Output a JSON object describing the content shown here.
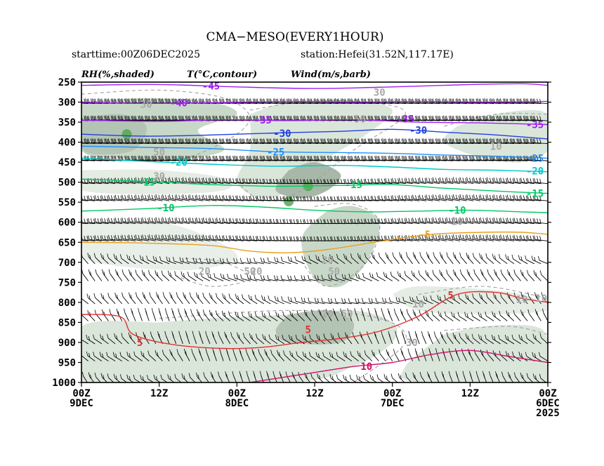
{
  "chart_data": {
    "type": "time-height cross-section",
    "title": "CMA−MESO(EVERY1HOUR)",
    "starttime_label": "starttime:00Z06DEC2025",
    "station_label": "station:Hefei(31.52N,117.17E)",
    "legend": {
      "rh": "RH(%,shaded)",
      "temp": "T(°C,contour)",
      "wind": "Wind(m/s,barb)"
    },
    "y_axis": {
      "unit": "hPa",
      "levels": [
        250,
        300,
        350,
        400,
        450,
        500,
        550,
        600,
        650,
        700,
        750,
        800,
        850,
        900,
        950,
        1000
      ],
      "labels": [
        "250",
        "300",
        "350",
        "400",
        "450",
        "500",
        "550",
        "600",
        "650",
        "700",
        "750",
        "800",
        "850",
        "900",
        "950",
        "1000"
      ]
    },
    "x_axis": {
      "direction": "reversed (time decreases to the right)",
      "hours_range": [
        0,
        72
      ],
      "ticks": [
        {
          "hour": 72,
          "line1": "00Z",
          "line2": "9DEC",
          "line3": ""
        },
        {
          "hour": 60,
          "line1": "12Z",
          "line2": "",
          "line3": ""
        },
        {
          "hour": 48,
          "line1": "00Z",
          "line2": "8DEC",
          "line3": ""
        },
        {
          "hour": 36,
          "line1": "12Z",
          "line2": "",
          "line3": ""
        },
        {
          "hour": 24,
          "line1": "00Z",
          "line2": "7DEC",
          "line3": ""
        },
        {
          "hour": 12,
          "line1": "12Z",
          "line2": "",
          "line3": ""
        },
        {
          "hour": 0,
          "line1": "00Z",
          "line2": "6DEC",
          "line3": "2025"
        }
      ]
    },
    "temperature_contours": [
      {
        "value": -45,
        "label": "-45",
        "color": "#a020f0",
        "points": [
          [
            72,
            258
          ],
          [
            60,
            256
          ],
          [
            48,
            262
          ],
          [
            36,
            266
          ],
          [
            24,
            262
          ],
          [
            12,
            256
          ],
          [
            4,
            254
          ],
          [
            0,
            258
          ]
        ]
      },
      {
        "value": -40,
        "label": "-40",
        "color": "#a020f0",
        "points": [
          [
            72,
            300
          ],
          [
            62,
            303
          ],
          [
            50,
            301
          ],
          [
            40,
            298
          ],
          [
            30,
            300
          ],
          [
            20,
            298
          ],
          [
            10,
            300
          ],
          [
            0,
            298
          ]
        ]
      },
      {
        "value": -35,
        "label": "-35",
        "color": "#a020f0",
        "points": [
          [
            72,
            345
          ],
          [
            60,
            348
          ],
          [
            50,
            344
          ],
          [
            40,
            346
          ],
          [
            30,
            344
          ],
          [
            20,
            350
          ],
          [
            10,
            352
          ],
          [
            0,
            356
          ]
        ]
      },
      {
        "value": -30,
        "label": "-30",
        "color": "#2040e0",
        "points": [
          [
            72,
            380
          ],
          [
            62,
            385
          ],
          [
            52,
            382
          ],
          [
            42,
            377
          ],
          [
            32,
            373
          ],
          [
            24,
            368
          ],
          [
            16,
            375
          ],
          [
            8,
            382
          ],
          [
            0,
            392
          ]
        ]
      },
      {
        "value": -25,
        "label": "-25",
        "color": "#1e90ff",
        "points": [
          [
            72,
            410
          ],
          [
            62,
            413
          ],
          [
            52,
            416
          ],
          [
            42,
            424
          ],
          [
            32,
            426
          ],
          [
            24,
            428
          ],
          [
            16,
            432
          ],
          [
            8,
            435
          ],
          [
            0,
            440
          ]
        ]
      },
      {
        "value": -20,
        "label": "-20",
        "color": "#00c8c8",
        "points": [
          [
            72,
            440
          ],
          [
            62,
            448
          ],
          [
            52,
            455
          ],
          [
            42,
            460
          ],
          [
            32,
            458
          ],
          [
            24,
            462
          ],
          [
            16,
            468
          ],
          [
            8,
            470
          ],
          [
            0,
            474
          ]
        ]
      },
      {
        "value": -15,
        "label": "-15",
        "color": "#00c864",
        "points": [
          [
            72,
            492
          ],
          [
            62,
            498
          ],
          [
            52,
            506
          ],
          [
            42,
            510
          ],
          [
            32,
            508
          ],
          [
            24,
            506
          ],
          [
            16,
            515
          ],
          [
            8,
            522
          ],
          [
            0,
            528
          ]
        ]
      },
      {
        "value": -10,
        "label": "-10",
        "color": "#00c864",
        "points": [
          [
            72,
            572
          ],
          [
            62,
            566
          ],
          [
            52,
            558
          ],
          [
            44,
            562
          ],
          [
            36,
            570
          ],
          [
            28,
            574
          ],
          [
            20,
            572
          ],
          [
            12,
            570
          ],
          [
            4,
            574
          ],
          [
            0,
            576
          ]
        ]
      },
      {
        "value": -5,
        "label": "-5",
        "color": "#e8a020",
        "points": [
          [
            72,
            650
          ],
          [
            62,
            652
          ],
          [
            52,
            658
          ],
          [
            46,
            672
          ],
          [
            40,
            676
          ],
          [
            34,
            668
          ],
          [
            26,
            648
          ],
          [
            18,
            630
          ],
          [
            10,
            625
          ],
          [
            4,
            625
          ],
          [
            0,
            630
          ]
        ]
      },
      {
        "value": 5,
        "label": "5",
        "color": "#e03030",
        "points": [
          [
            72,
            830
          ],
          [
            66,
            836
          ],
          [
            64,
            880
          ],
          [
            58,
            905
          ],
          [
            50,
            915
          ],
          [
            44,
            912
          ],
          [
            38,
            900
          ],
          [
            32,
            890
          ],
          [
            26,
            872
          ],
          [
            20,
            835
          ],
          [
            14,
            780
          ],
          [
            8,
            775
          ],
          [
            4,
            790
          ],
          [
            0,
            800
          ]
        ]
      },
      {
        "value": 10,
        "label": "10",
        "color": "#d0106a",
        "points": [
          [
            46,
            1000
          ],
          [
            42,
            990
          ],
          [
            36,
            975
          ],
          [
            30,
            960
          ],
          [
            24,
            950
          ],
          [
            18,
            930
          ],
          [
            12,
            920
          ],
          [
            6,
            935
          ],
          [
            0,
            950
          ]
        ]
      }
    ],
    "temperature_labels": [
      {
        "text": "-45",
        "hour": 52,
        "p": 260
      },
      {
        "text": "-40",
        "hour": 57,
        "p": 302
      },
      {
        "text": "-35",
        "hour": 44,
        "p": 345
      },
      {
        "text": "-35",
        "hour": 22,
        "p": 342
      },
      {
        "text": "-35",
        "hour": 2,
        "p": 356
      },
      {
        "text": "-30",
        "hour": 41,
        "p": 378
      },
      {
        "text": "-30",
        "hour": 20,
        "p": 370
      },
      {
        "text": "-25",
        "hour": 42,
        "p": 424
      },
      {
        "text": "-25",
        "hour": 2,
        "p": 440
      },
      {
        "text": "-20",
        "hour": 57,
        "p": 450
      },
      {
        "text": "-20",
        "hour": 2,
        "p": 472
      },
      {
        "text": "-15",
        "hour": 62,
        "p": 500
      },
      {
        "text": "-15",
        "hour": 30,
        "p": 506
      },
      {
        "text": "-15",
        "hour": 2,
        "p": 528
      },
      {
        "text": "-10",
        "hour": 59,
        "p": 564
      },
      {
        "text": "-10",
        "hour": 14,
        "p": 570
      },
      {
        "text": "-5",
        "hour": 19,
        "p": 630
      },
      {
        "text": "5",
        "hour": 63,
        "p": 900
      },
      {
        "text": "5",
        "hour": 37,
        "p": 868
      },
      {
        "text": "5",
        "hour": 15,
        "p": 782
      },
      {
        "text": "10",
        "hour": 28,
        "p": 960
      }
    ],
    "rh_levels": [
      {
        "value": 10,
        "label": "10"
      },
      {
        "value": 20,
        "label": "20"
      },
      {
        "value": 30,
        "label": "30"
      },
      {
        "value": 50,
        "label": "50"
      }
    ],
    "rh_labels": [
      {
        "text": "30",
        "hour": 26,
        "p": 275
      },
      {
        "text": "30",
        "hour": 62,
        "p": 305
      },
      {
        "text": "50",
        "hour": 29,
        "p": 342
      },
      {
        "text": "50",
        "hour": 60,
        "p": 424
      },
      {
        "text": "30",
        "hour": 60,
        "p": 485
      },
      {
        "text": "10",
        "hour": 8,
        "p": 410
      },
      {
        "text": "10",
        "hour": 14,
        "p": 598
      },
      {
        "text": "10",
        "hour": 4,
        "p": 792
      },
      {
        "text": "10",
        "hour": 1,
        "p": 790
      },
      {
        "text": "20",
        "hour": 34,
        "p": 694
      },
      {
        "text": "50",
        "hour": 33,
        "p": 722
      },
      {
        "text": "20",
        "hour": 53,
        "p": 722
      },
      {
        "text": "50",
        "hour": 46,
        "p": 722
      },
      {
        "text": "10",
        "hour": 20,
        "p": 804
      },
      {
        "text": "50",
        "hour": 31,
        "p": 828
      },
      {
        "text": "20",
        "hour": 34,
        "p": 828
      },
      {
        "text": "20",
        "hour": 45,
        "p": 722
      },
      {
        "text": "30",
        "hour": 21,
        "p": 900
      }
    ],
    "wind_summary": "Westerly to southwesterly winds aloft (strongest 250–450 hPa, ~20–40 m/s); weaker, variable winds in the lower troposphere."
  }
}
